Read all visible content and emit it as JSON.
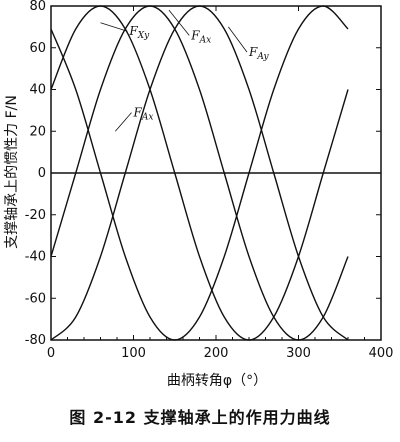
{
  "caption": "图 2-12   支撑轴承上的作用力曲线",
  "chart_data": {
    "type": "line",
    "xlabel": "曲柄转角φ（°）",
    "ylabel": "支撑轴承上的惯性力 F/N",
    "xlim": [
      0,
      400
    ],
    "ylim": [
      -80,
      80
    ],
    "xticks": [
      0,
      100,
      200,
      300,
      400
    ],
    "yticks": [
      -80,
      -60,
      -40,
      -20,
      0,
      20,
      40,
      60,
      80
    ],
    "grid": false,
    "series": [
      {
        "name": "F_Ax",
        "label_main": "F",
        "label_sub": "Ax",
        "label_at": [
          100,
          27
        ],
        "label_anchor": [
          78,
          20
        ],
        "x": [
          0,
          30,
          60,
          90,
          120,
          150,
          180,
          210,
          240,
          270,
          300,
          330,
          360
        ],
        "values": [
          40,
          69,
          80,
          69,
          40,
          0,
          -40,
          -69,
          -80,
          -69,
          -40,
          0,
          40
        ]
      },
      {
        "name": "F_Xy",
        "label_main": "F",
        "label_sub": "Xy",
        "label_at": [
          95,
          66
        ],
        "label_anchor": [
          60,
          72
        ],
        "x": [
          0,
          30,
          60,
          90,
          120,
          150,
          180,
          210,
          240,
          270,
          300,
          330,
          360
        ],
        "values": [
          69,
          40,
          0,
          -40,
          -69,
          -80,
          -69,
          -40,
          0,
          40,
          69,
          80,
          69
        ]
      },
      {
        "name": "F_Ax(2)",
        "label_main": "F",
        "label_sub": "Ax",
        "label_at": [
          170,
          64
        ],
        "label_anchor": [
          143,
          78
        ],
        "x": [
          0,
          30,
          60,
          90,
          120,
          150,
          180,
          210,
          240,
          270,
          300,
          330,
          360
        ],
        "values": [
          -80,
          -69,
          -40,
          0,
          40,
          69,
          80,
          69,
          40,
          0,
          -40,
          -69,
          -80
        ]
      },
      {
        "name": "F_Ay",
        "label_main": "F",
        "label_sub": "Ay",
        "label_at": [
          240,
          56
        ],
        "label_anchor": [
          215,
          70
        ],
        "x": [
          0,
          30,
          60,
          90,
          120,
          150,
          180,
          210,
          240,
          270,
          300,
          330,
          360
        ],
        "values": [
          -40,
          0,
          40,
          69,
          80,
          69,
          40,
          0,
          -40,
          -69,
          -80,
          -69,
          -40
        ]
      }
    ]
  },
  "colors": {
    "line": "#111111",
    "axis": "#111111",
    "background": "#ffffff"
  }
}
